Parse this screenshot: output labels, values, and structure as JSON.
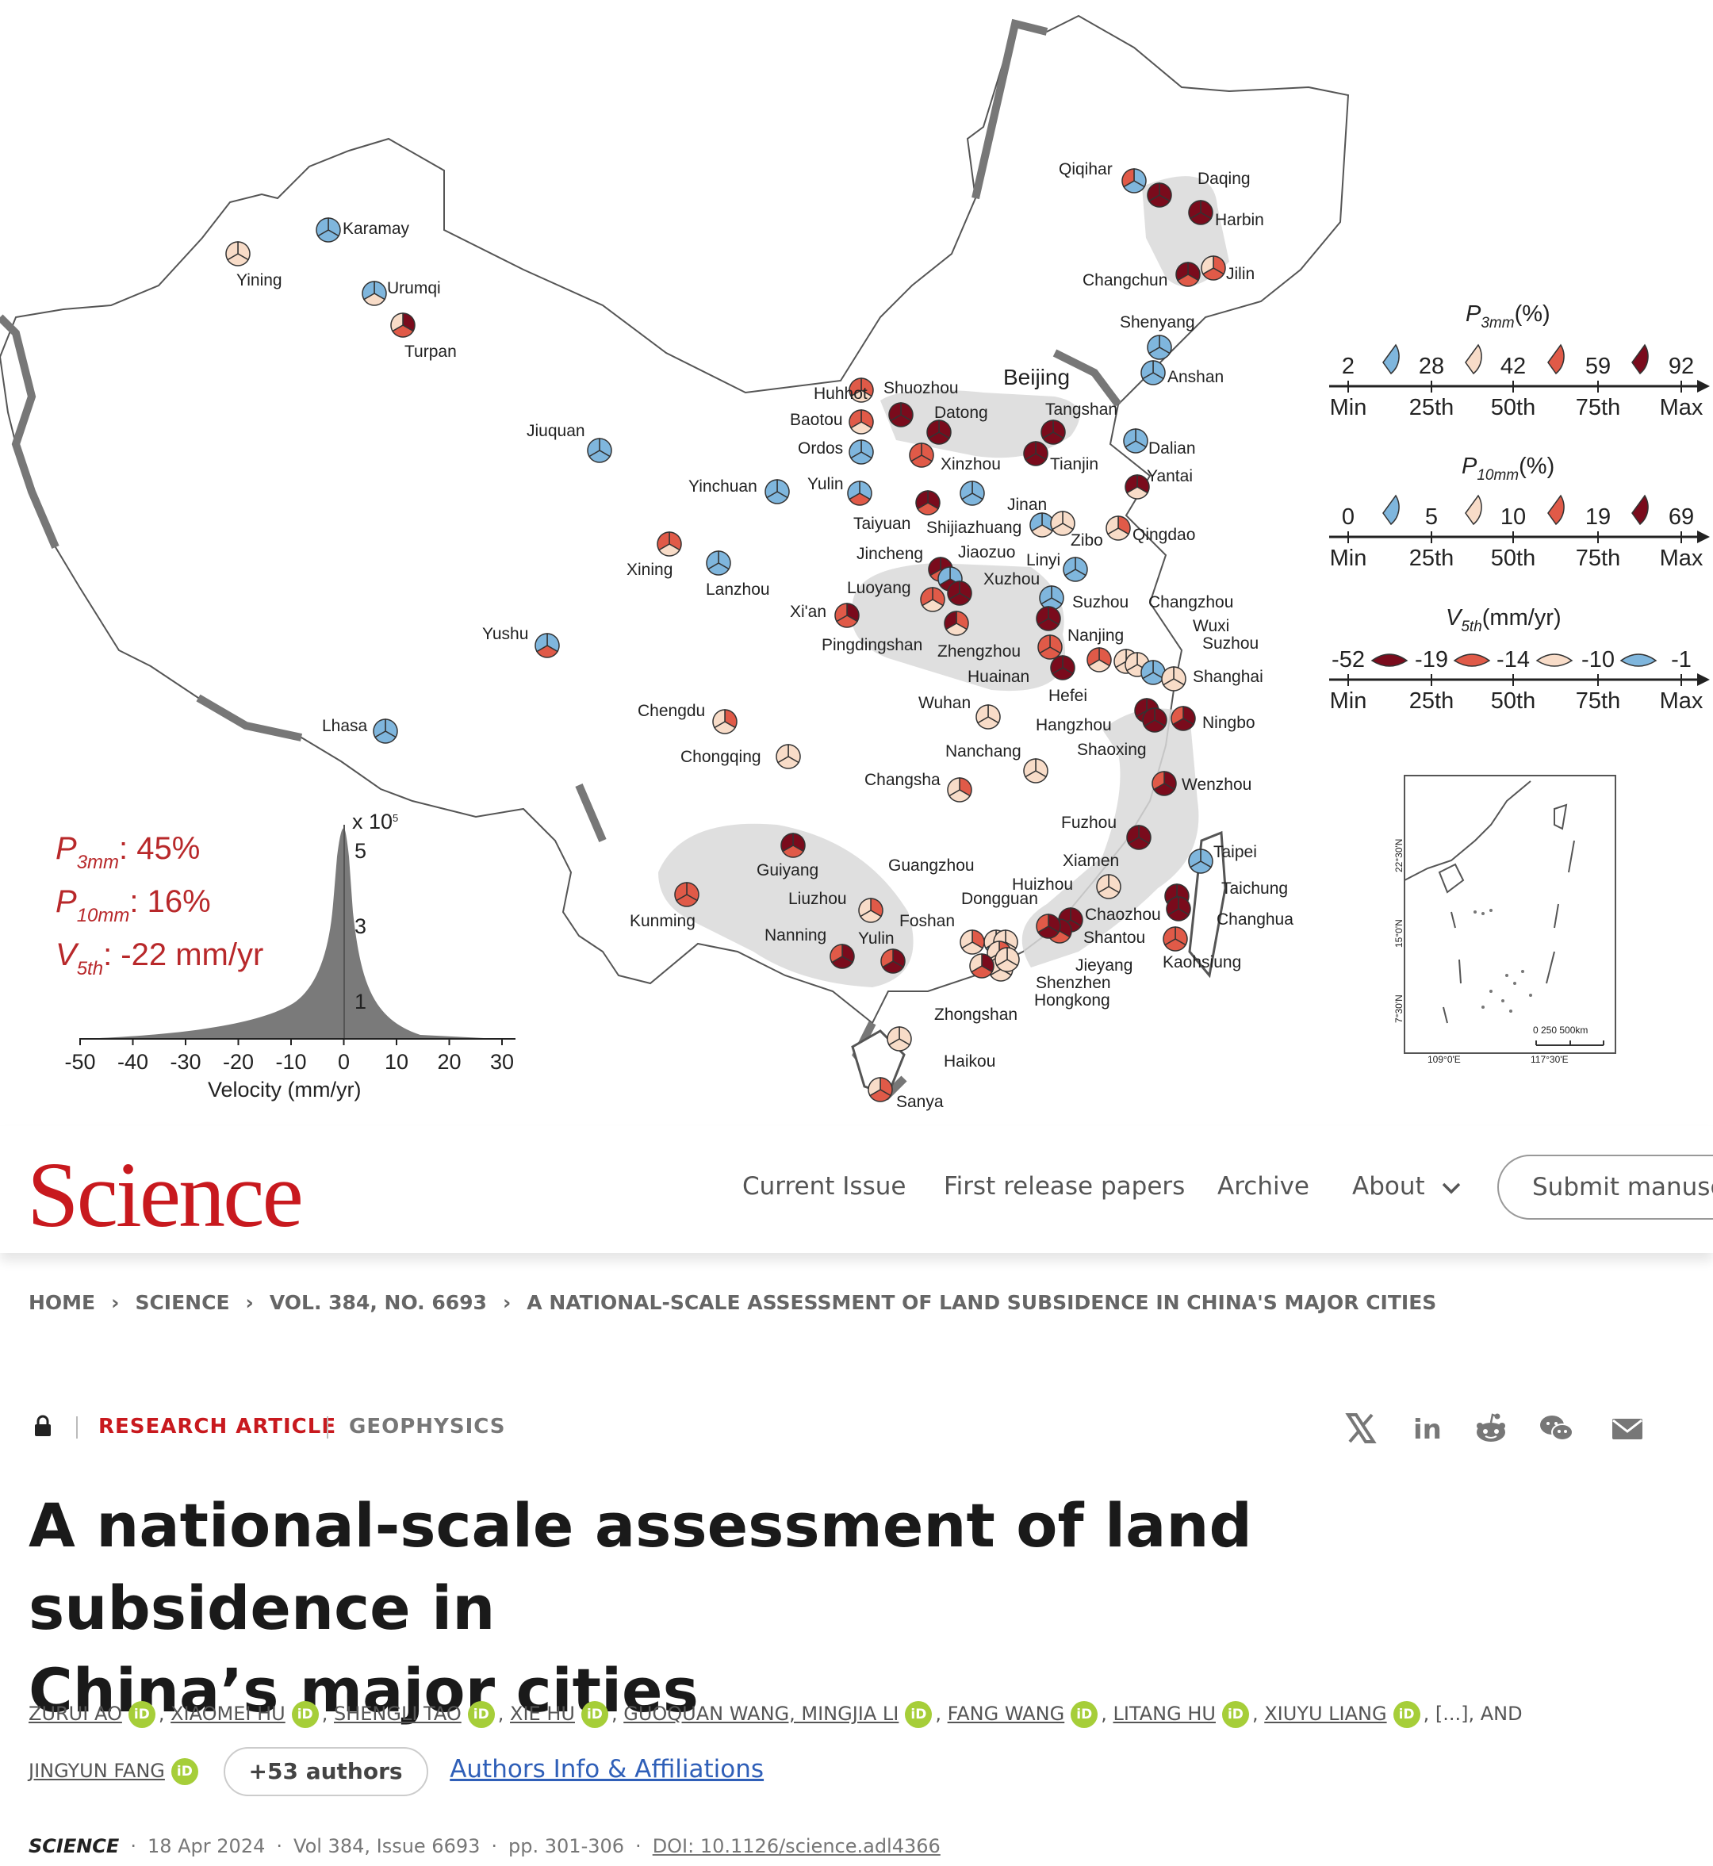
{
  "figure": {
    "stats": {
      "p3_label": "P",
      "p3_sub": "3mm",
      "p3_value": ": 45%",
      "p10_label": "P",
      "p10_sub": "10mm",
      "p10_value": ": 16%",
      "v5_label": "V",
      "v5_sub": "5th",
      "v5_value": ": -22 mm/yr"
    },
    "histogram": {
      "scale_label": "x 10",
      "scale_exp": "5",
      "y_ticks": [
        "5",
        "3",
        "1"
      ],
      "x_ticks": [
        "-50",
        "-40",
        "-30",
        "-20",
        "-10",
        "0",
        "10",
        "20",
        "30"
      ],
      "xlabel": "Velocity (mm/yr)"
    },
    "legend": {
      "p3_title": "P",
      "p3_sub": "3mm",
      "p3_unit": "(%)",
      "p3_values": [
        "2",
        "28",
        "42",
        "59",
        "92"
      ],
      "p10_title": "P",
      "p10_sub": "10mm",
      "p10_unit": "(%)",
      "p10_values": [
        "0",
        "5",
        "10",
        "19",
        "69"
      ],
      "v5_title": "V",
      "v5_sub": "5th",
      "v5_unit": "(mm/yr)",
      "v5_values": [
        "-52",
        "-19",
        "-14",
        "-10",
        "-1"
      ],
      "scale_labels": [
        "Min",
        "25th",
        "50th",
        "75th",
        "Max"
      ],
      "colors": [
        "#7a0b1c",
        "#e05a48",
        "#f8dcc8",
        "#7fb6dd"
      ]
    },
    "inset": {
      "lat_labels": [
        "22°30'N",
        "15°0'N",
        "7°30'N"
      ],
      "lon_labels": [
        "109°0'E",
        "117°30'E"
      ],
      "scale_text": "0   250  500km"
    },
    "beijing_label": "Beijing",
    "cities": [
      {
        "name": "Qiqihar",
        "c": [
          3,
          3,
          1
        ]
      },
      {
        "name": "Daqing",
        "c": [
          0,
          0,
          0
        ]
      },
      {
        "name": "Harbin",
        "c": [
          0,
          0,
          0
        ]
      },
      {
        "name": "Changchun",
        "c": [
          0,
          1,
          0
        ]
      },
      {
        "name": "Jilin",
        "c": [
          1,
          1,
          2
        ]
      },
      {
        "name": "Shenyang",
        "c": [
          3,
          3,
          3
        ]
      },
      {
        "name": "Anshan",
        "c": [
          3,
          3,
          3
        ]
      },
      {
        "name": "Karamay",
        "c": [
          3,
          3,
          3
        ]
      },
      {
        "name": "Yining",
        "c": [
          2,
          2,
          2
        ]
      },
      {
        "name": "Urumqi",
        "c": [
          3,
          2,
          3
        ]
      },
      {
        "name": "Turpan",
        "c": [
          0,
          1,
          2
        ]
      },
      {
        "name": "Jiuquan",
        "c": [
          3,
          3,
          3
        ]
      },
      {
        "name": "Huhhot",
        "c": [
          1,
          2,
          1
        ]
      },
      {
        "name": "Shuozhou",
        "c": [
          0,
          0,
          0
        ]
      },
      {
        "name": "Baotou",
        "c": [
          1,
          2,
          1
        ]
      },
      {
        "name": "Ordos",
        "c": [
          3,
          3,
          3
        ]
      },
      {
        "name": "Datong",
        "c": [
          0,
          0,
          0
        ]
      },
      {
        "name": "Xinzhou",
        "c": [
          1,
          1,
          1
        ]
      },
      {
        "name": "Tangshan",
        "c": [
          0,
          0,
          0
        ]
      },
      {
        "name": "Tianjin",
        "c": [
          0,
          0,
          0
        ]
      },
      {
        "name": "Dalian",
        "c": [
          3,
          3,
          3
        ]
      },
      {
        "name": "Yantai",
        "c": [
          0,
          2,
          0
        ]
      },
      {
        "name": "Yinchuan",
        "c": [
          3,
          3,
          3
        ]
      },
      {
        "name": "Yulin_n",
        "c": [
          3,
          1,
          3
        ]
      },
      {
        "name": "Taiyuan",
        "c": [
          0,
          1,
          0
        ]
      },
      {
        "name": "Shijiazhuang",
        "c": [
          3,
          3,
          3
        ]
      },
      {
        "name": "Jinan",
        "c": [
          3,
          2,
          3
        ]
      },
      {
        "name": "Zibo",
        "c": [
          2,
          2,
          2
        ]
      },
      {
        "name": "Qingdao",
        "c": [
          1,
          2,
          2
        ]
      },
      {
        "name": "Xining",
        "c": [
          1,
          2,
          1
        ]
      },
      {
        "name": "Lanzhou",
        "c": [
          3,
          3,
          3
        ]
      },
      {
        "name": "Jincheng",
        "c": [
          0,
          1,
          0
        ]
      },
      {
        "name": "Jiaozuo",
        "c": [
          3,
          0,
          3
        ]
      },
      {
        "name": "Linyi",
        "c": [
          3,
          3,
          3
        ]
      },
      {
        "name": "Xuzhou",
        "c": [
          3,
          3,
          3
        ]
      },
      {
        "name": "Luoyang",
        "c": [
          1,
          2,
          1
        ]
      },
      {
        "name": "Xi'an",
        "c": [
          0,
          1,
          1
        ]
      },
      {
        "name": "Pingdingshan",
        "c": [
          1,
          2,
          0
        ]
      },
      {
        "name": "Zhengzhou",
        "c": [
          0,
          0,
          0
        ]
      },
      {
        "name": "Suzhou_n",
        "c": [
          0,
          0,
          0
        ]
      },
      {
        "name": "Nanjing",
        "c": [
          1,
          1,
          1
        ]
      },
      {
        "name": "Huainan",
        "c": [
          0,
          0,
          0
        ]
      },
      {
        "name": "Hefei",
        "c": [
          1,
          2,
          1
        ]
      },
      {
        "name": "Changzhou",
        "c": [
          2,
          2,
          2
        ]
      },
      {
        "name": "Wuxi",
        "c": [
          2,
          2,
          2
        ]
      },
      {
        "name": "Suzhou",
        "c": [
          3,
          3,
          3
        ]
      },
      {
        "name": "Shanghai",
        "c": [
          2,
          2,
          2
        ]
      },
      {
        "name": "Yushu",
        "c": [
          3,
          1,
          3
        ]
      },
      {
        "name": "Lhasa",
        "c": [
          3,
          3,
          3
        ]
      },
      {
        "name": "Chengdu",
        "c": [
          1,
          2,
          2
        ]
      },
      {
        "name": "Chongqing",
        "c": [
          2,
          2,
          2
        ]
      },
      {
        "name": "Wuhan",
        "c": [
          2,
          2,
          2
        ]
      },
      {
        "name": "Hangzhou",
        "c": [
          0,
          0,
          0
        ]
      },
      {
        "name": "Ningbo",
        "c": [
          0,
          0,
          1
        ]
      },
      {
        "name": "Shaoxing",
        "c": [
          0,
          0,
          0
        ]
      },
      {
        "name": "Nanchang",
        "c": [
          2,
          2,
          2
        ]
      },
      {
        "name": "Changsha",
        "c": [
          1,
          2,
          2
        ]
      },
      {
        "name": "Wenzhou",
        "c": [
          0,
          0,
          1
        ]
      },
      {
        "name": "Fuzhou",
        "c": [
          0,
          0,
          0
        ]
      },
      {
        "name": "Xiamen",
        "c": [
          2,
          2,
          2
        ]
      },
      {
        "name": "Taipei",
        "c": [
          3,
          3,
          3
        ]
      },
      {
        "name": "Taichung",
        "c": [
          0,
          1,
          0
        ]
      },
      {
        "name": "Changhua",
        "c": [
          0,
          0,
          0
        ]
      },
      {
        "name": "Kaohsiung",
        "c": [
          1,
          1,
          1
        ]
      },
      {
        "name": "Guiyang",
        "c": [
          0,
          1,
          0
        ]
      },
      {
        "name": "Kunming",
        "c": [
          1,
          1,
          1
        ]
      },
      {
        "name": "Liuzhou",
        "c": [
          1,
          2,
          2
        ]
      },
      {
        "name": "Nanning",
        "c": [
          0,
          0,
          1
        ]
      },
      {
        "name": "Yulin",
        "c": [
          0,
          0,
          1
        ]
      },
      {
        "name": "Guangzhou",
        "c": [
          2,
          3,
          2
        ]
      },
      {
        "name": "Huizhou",
        "c": [
          2,
          2,
          2
        ]
      },
      {
        "name": "Dongguan",
        "c": [
          1,
          2,
          2
        ]
      },
      {
        "name": "Foshan",
        "c": [
          1,
          2,
          2
        ]
      },
      {
        "name": "Chaozhou",
        "c": [
          0,
          0,
          0
        ]
      },
      {
        "name": "Shantou",
        "c": [
          0,
          1,
          0
        ]
      },
      {
        "name": "Jieyang",
        "c": [
          0,
          0,
          1
        ]
      },
      {
        "name": "Shenzhen",
        "c": [
          2,
          2,
          2
        ]
      },
      {
        "name": "Hongkong",
        "c": [
          2,
          2,
          2
        ]
      },
      {
        "name": "Zhongshan",
        "c": [
          0,
          1,
          2
        ]
      },
      {
        "name": "Haikou",
        "c": [
          2,
          2,
          2
        ]
      },
      {
        "name": "Sanya",
        "c": [
          1,
          1,
          2
        ]
      }
    ]
  },
  "header": {
    "logo": "Science",
    "nav": [
      "Current Issue",
      "First release papers",
      "Archive",
      "About"
    ],
    "submit": "Submit manuscript"
  },
  "breadcrumb": [
    "HOME",
    "SCIENCE",
    "VOL. 384, NO. 6693",
    "A NATIONAL-SCALE ASSESSMENT OF LAND SUBSIDENCE IN CHINA'S MAJOR CITIES"
  ],
  "article": {
    "type": "RESEARCH ARTICLE",
    "subject": "GEOPHYSICS",
    "title_line1": "A national-scale assessment of land subsidence in",
    "title_line2": "China’s major cities",
    "authors": [
      "ZURUI AO",
      "XIAOMEI HU",
      "SHENGLI TAO",
      "XIE HU",
      "GUOQUAN WANG, MINGJIA LI",
      "FANG WANG",
      "LITANG HU",
      "XIUYU LIANG",
      "JINGYUN FANG"
    ],
    "ellipsis": ", [...], AND",
    "orcid_label": "iD",
    "more_authors": "+53 authors",
    "affiliations_link": "Authors Info & Affiliations"
  },
  "citation": {
    "journal": "SCIENCE",
    "date": "18 Apr 2024",
    "volume": "Vol 384, Issue 6693",
    "pages": "pp. 301-306",
    "doi": "DOI: 10.1126/science.adl4366"
  }
}
